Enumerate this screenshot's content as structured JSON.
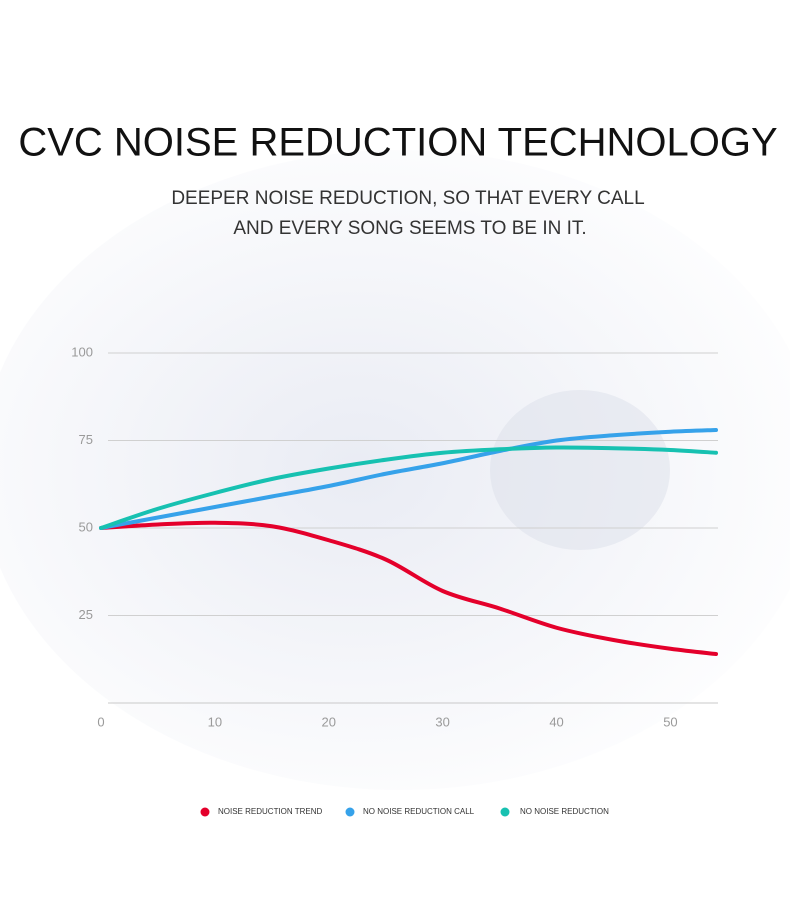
{
  "chart_data": {
    "type": "line",
    "title": "CVC NOISE REDUCTION TECHNOLOGY",
    "subtitle": [
      "DEEPER NOISE REDUCTION, SO THAT EVERY CALL",
      "AND EVERY SONG SEEMS TO BE IN IT."
    ],
    "x": [
      0,
      5,
      10,
      15,
      20,
      25,
      30,
      35,
      40,
      45,
      50,
      54
    ],
    "series": [
      {
        "name": "NOISE REDUCTION TREND",
        "color": "#e4002b",
        "values": [
          50,
          51,
          51.5,
          50.5,
          46.5,
          41,
          32,
          27,
          21.5,
          18,
          15.5,
          14
        ]
      },
      {
        "name": "NO NOISE REDUCTION CALL",
        "color": "#36a2ea",
        "values": [
          50,
          53,
          56,
          59,
          62,
          65.5,
          68.5,
          72,
          75,
          76.5,
          77.5,
          78
        ]
      },
      {
        "name": "NO NOISE REDUCTION",
        "color": "#17c1b1",
        "values": [
          50,
          55.5,
          60,
          64,
          67,
          69.5,
          71.5,
          72.5,
          73,
          72.8,
          72.3,
          71.5
        ]
      }
    ],
    "xlim": [
      0,
      54
    ],
    "xticks": [
      0,
      10,
      20,
      30,
      40,
      50
    ],
    "ylim": [
      0,
      100
    ],
    "yticks": [
      25,
      50,
      75,
      100
    ],
    "grid": true,
    "legend": "bottom"
  }
}
